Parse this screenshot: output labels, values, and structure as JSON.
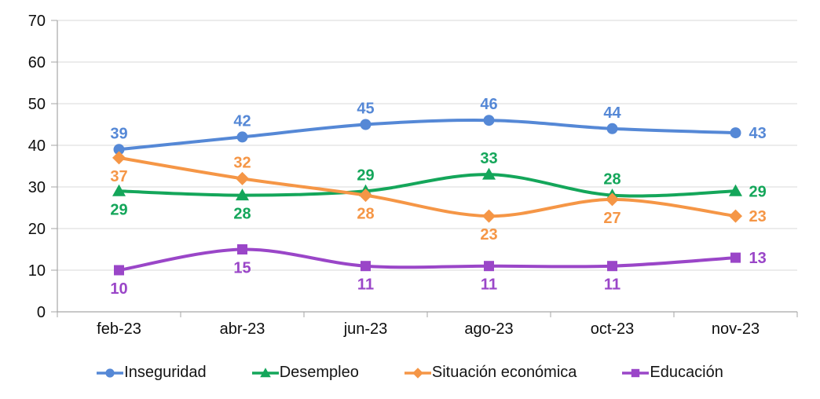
{
  "chart_data": {
    "type": "line",
    "title": "",
    "xlabel": "",
    "ylabel": "",
    "categories": [
      "feb-23",
      "abr-23",
      "jun-23",
      "ago-23",
      "oct-23",
      "nov-23"
    ],
    "series": [
      {
        "name": "Inseguridad",
        "color": "#5588D6",
        "marker": "circle",
        "values": [
          39,
          42,
          45,
          46,
          44,
          43
        ],
        "label_positions": [
          "above",
          "above",
          "above",
          "above",
          "above",
          "right"
        ]
      },
      {
        "name": "Desempleo",
        "color": "#14A65A",
        "marker": "triangle",
        "values": [
          29,
          28,
          29,
          33,
          28,
          29
        ],
        "label_positions": [
          "below",
          "below",
          "above",
          "above",
          "above",
          "right"
        ]
      },
      {
        "name": "Situación económica",
        "color": "#F59646",
        "marker": "diamond",
        "values": [
          37,
          32,
          28,
          23,
          27,
          23
        ],
        "label_positions": [
          "below",
          "above",
          "below",
          "below",
          "below",
          "right"
        ]
      },
      {
        "name": "Educación",
        "color": "#9A46C8",
        "marker": "square",
        "values": [
          10,
          15,
          11,
          11,
          11,
          13
        ],
        "label_positions": [
          "below",
          "below",
          "below",
          "below",
          "below",
          "right"
        ]
      }
    ],
    "ylim": [
      0,
      70
    ],
    "yticks": [
      0,
      10,
      20,
      30,
      40,
      50,
      60,
      70
    ],
    "grid": true,
    "smooth_lines": true,
    "legend_position": "bottom",
    "colors": {
      "axis": "#A6A6A6",
      "grid": "#D9D9D9",
      "tick_label": "#0D0D0D"
    }
  }
}
